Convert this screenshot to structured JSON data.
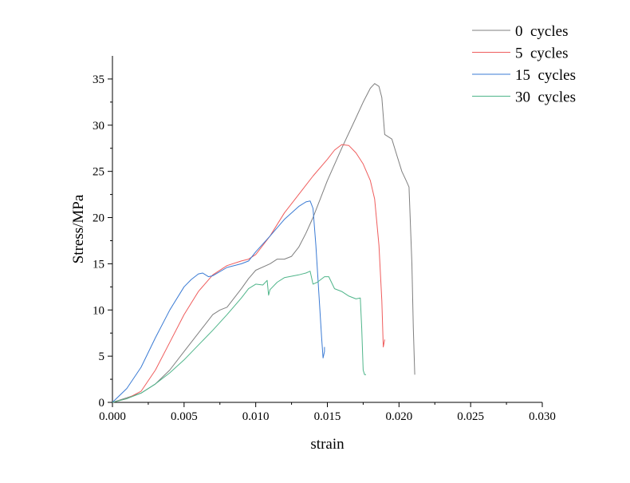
{
  "chart_data": {
    "type": "line",
    "title": "",
    "xlabel": "strain",
    "ylabel": "Stress/MPa",
    "xlim": [
      0.0,
      0.03
    ],
    "ylim": [
      0,
      37.5
    ],
    "xticks": [
      0.0,
      0.005,
      0.01,
      0.015,
      0.02,
      0.025,
      0.03
    ],
    "xtick_labels": [
      "0.000",
      "0.005",
      "0.010",
      "0.015",
      "0.020",
      "0.025",
      "0.030"
    ],
    "yticks": [
      0,
      5,
      10,
      15,
      20,
      25,
      30,
      35
    ],
    "ytick_labels": [
      "0",
      "5",
      "10",
      "15",
      "20",
      "25",
      "30",
      "35"
    ],
    "grid": false,
    "legend_position": "top-right",
    "series": [
      {
        "name": "0  cycles",
        "color": "#7f7f7f",
        "x": [
          0.0,
          0.001,
          0.002,
          0.003,
          0.004,
          0.005,
          0.006,
          0.007,
          0.0075,
          0.008,
          0.009,
          0.0095,
          0.01,
          0.011,
          0.0115,
          0.012,
          0.0125,
          0.013,
          0.0135,
          0.014,
          0.0145,
          0.015,
          0.016,
          0.017,
          0.0175,
          0.018,
          0.0183,
          0.0186,
          0.0188,
          0.019,
          0.0195,
          0.0198,
          0.0202,
          0.0205,
          0.0207,
          0.0209,
          0.021,
          0.0211
        ],
        "y": [
          0.0,
          0.5,
          1.0,
          2.0,
          3.5,
          5.5,
          7.5,
          9.5,
          10.0,
          10.3,
          12.3,
          13.4,
          14.3,
          15.0,
          15.5,
          15.5,
          15.8,
          16.8,
          18.3,
          20.0,
          22.0,
          24.0,
          27.5,
          30.8,
          32.5,
          34.0,
          34.5,
          34.2,
          33.0,
          29.0,
          28.5,
          27.0,
          25.0,
          24.0,
          23.3,
          15.0,
          8.0,
          3.0
        ]
      },
      {
        "name": "5  cycles",
        "color": "#ef5d5d",
        "x": [
          0.0,
          0.001,
          0.002,
          0.003,
          0.004,
          0.005,
          0.006,
          0.007,
          0.008,
          0.009,
          0.0095,
          0.01,
          0.011,
          0.012,
          0.013,
          0.014,
          0.015,
          0.0155,
          0.016,
          0.0165,
          0.017,
          0.0175,
          0.018,
          0.0183,
          0.0186,
          0.0188,
          0.0189,
          0.019
        ],
        "y": [
          0.0,
          0.4,
          1.2,
          3.5,
          6.5,
          9.5,
          12.0,
          13.8,
          14.8,
          15.3,
          15.5,
          16.0,
          18.0,
          20.5,
          22.5,
          24.5,
          26.3,
          27.3,
          27.9,
          27.8,
          27.0,
          25.8,
          24.0,
          22.0,
          17.0,
          11.0,
          6.0,
          6.8
        ]
      },
      {
        "name": "15  cycles",
        "color": "#3b7bd4",
        "x": [
          0.0,
          0.001,
          0.002,
          0.003,
          0.004,
          0.005,
          0.0055,
          0.006,
          0.0063,
          0.0067,
          0.007,
          0.008,
          0.009,
          0.0095,
          0.01,
          0.011,
          0.012,
          0.013,
          0.0135,
          0.0138,
          0.014,
          0.0142,
          0.0144,
          0.0146,
          0.0147,
          0.0148,
          0.0148
        ],
        "y": [
          0.0,
          1.5,
          3.8,
          7.0,
          10.0,
          12.5,
          13.3,
          13.9,
          14.0,
          13.6,
          13.7,
          14.6,
          15.0,
          15.3,
          16.3,
          18.0,
          19.8,
          21.2,
          21.7,
          21.8,
          21.0,
          17.0,
          12.0,
          7.0,
          4.8,
          5.5,
          6.0
        ]
      },
      {
        "name": "30  cycles",
        "color": "#4fb58a",
        "x": [
          0.0,
          0.001,
          0.002,
          0.003,
          0.004,
          0.005,
          0.006,
          0.007,
          0.008,
          0.009,
          0.0095,
          0.01,
          0.0105,
          0.0108,
          0.0109,
          0.011,
          0.0115,
          0.012,
          0.013,
          0.0135,
          0.0138,
          0.014,
          0.0143,
          0.0148,
          0.0151,
          0.0155,
          0.016,
          0.0165,
          0.017,
          0.0173,
          0.0174,
          0.0175,
          0.0176,
          0.0177
        ],
        "y": [
          0.0,
          0.4,
          1.0,
          2.0,
          3.2,
          4.6,
          6.2,
          7.8,
          9.5,
          11.3,
          12.3,
          12.8,
          12.7,
          13.2,
          11.6,
          12.2,
          13.0,
          13.5,
          13.8,
          14.0,
          14.2,
          12.8,
          13.0,
          13.6,
          13.6,
          12.3,
          12.0,
          11.5,
          11.2,
          11.3,
          8.0,
          3.5,
          3.0,
          3.0
        ]
      }
    ]
  }
}
